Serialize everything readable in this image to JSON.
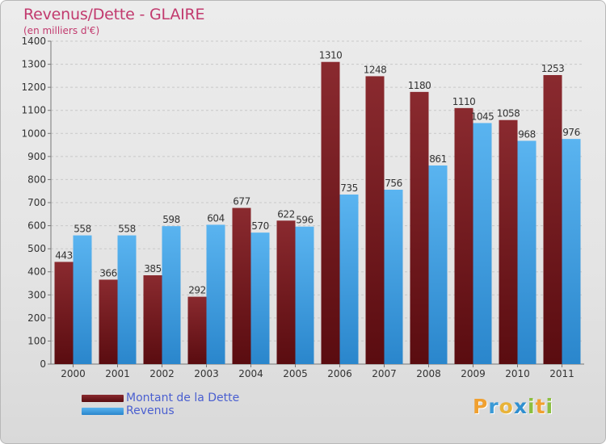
{
  "title": "Revenus/Dette - GLAIRE",
  "subtitle": "(en milliers d'€)",
  "logo": {
    "letters": [
      "P",
      "r",
      "o",
      "x",
      "i",
      "t",
      "i"
    ],
    "colors": [
      "#f0a030",
      "#3b9ad6",
      "#e8b33a",
      "#2f8fd0",
      "#8cbf3f",
      "#f0a030",
      "#8cbf3f"
    ]
  },
  "colors": {
    "series1": "#7a1a1f",
    "series2": "#3a9ce0",
    "title": "#c23a6e",
    "legend_text": "#4a5fd0"
  },
  "chart_data": {
    "type": "bar",
    "title": "Revenus/Dette - GLAIRE",
    "ylabel": "(en milliers d'€)",
    "xlabel": "",
    "ylim": [
      0,
      1400
    ],
    "yticks": [
      0,
      100,
      200,
      300,
      400,
      500,
      600,
      700,
      800,
      900,
      1000,
      1100,
      1200,
      1300,
      1400
    ],
    "grid": true,
    "legend_position": "bottom-left",
    "categories": [
      "2000",
      "2001",
      "2002",
      "2003",
      "2004",
      "2005",
      "2006",
      "2007",
      "2008",
      "2009",
      "2010",
      "2011"
    ],
    "series": [
      {
        "name": "Montant de la Dette",
        "values": [
          443,
          366,
          385,
          292,
          677,
          622,
          1310,
          1248,
          1180,
          1110,
          1058,
          1253
        ]
      },
      {
        "name": "Revenus",
        "values": [
          558,
          558,
          598,
          604,
          570,
          596,
          735,
          756,
          861,
          1045,
          968,
          976
        ]
      }
    ]
  }
}
